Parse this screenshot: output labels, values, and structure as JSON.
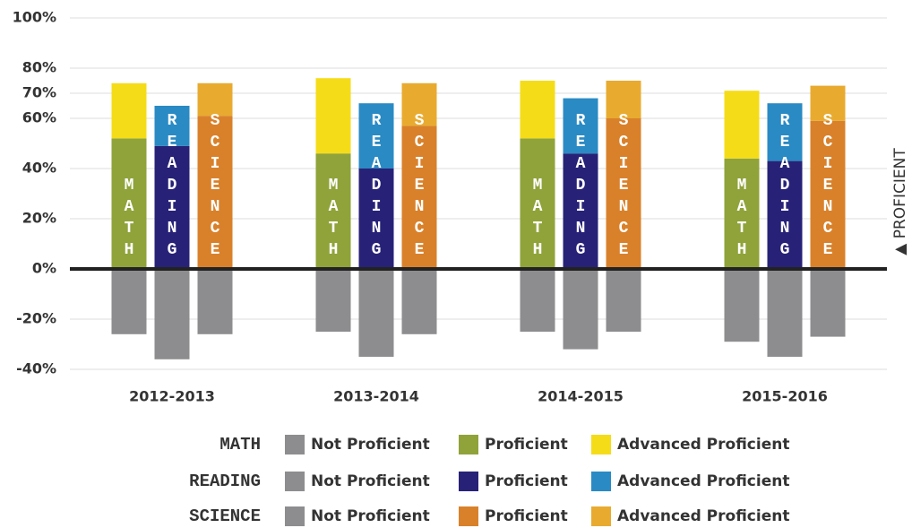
{
  "chart_data": {
    "type": "bar",
    "categories": [
      "2012-2013",
      "2013-2014",
      "2014-2015",
      "2015-2016"
    ],
    "ylim": [
      -40,
      100
    ],
    "yticks": [
      {
        "value": -40,
        "label": "-40%"
      },
      {
        "value": -20,
        "label": "-20%"
      },
      {
        "value": 0,
        "label": "0%"
      },
      {
        "value": 20,
        "label": "20%"
      },
      {
        "value": 40,
        "label": "40%"
      },
      {
        "value": 60,
        "label": "60%"
      },
      {
        "value": 70,
        "label": "70%"
      },
      {
        "value": 80,
        "label": "80%"
      },
      {
        "value": 100,
        "label": "100%"
      }
    ],
    "grid": true,
    "y_axis_label": "▲ PROFICIENT",
    "subjects": [
      {
        "name": "MATH",
        "series": [
          {
            "name": "Not Proficient",
            "color": "#8d8d8f",
            "values": [
              -26,
              -25,
              -25,
              -29
            ]
          },
          {
            "name": "Proficient",
            "color": "#8fa33a",
            "values": [
              52,
              46,
              52,
              44
            ]
          },
          {
            "name": "Advanced Proficient",
            "color": "#f5dc18",
            "values": [
              22,
              30,
              23,
              27
            ]
          }
        ]
      },
      {
        "name": "READING",
        "series": [
          {
            "name": "Not Proficient",
            "color": "#8d8d8f",
            "values": [
              -36,
              -35,
              -32,
              -35
            ]
          },
          {
            "name": "Proficient",
            "color": "#272277",
            "values": [
              49,
              40,
              46,
              43
            ]
          },
          {
            "name": "Advanced Proficient",
            "color": "#2a8ac4",
            "values": [
              16,
              26,
              22,
              23
            ]
          }
        ]
      },
      {
        "name": "SCIENCE",
        "series": [
          {
            "name": "Not Proficient",
            "color": "#8d8d8f",
            "values": [
              -26,
              -26,
              -25,
              -27
            ]
          },
          {
            "name": "Proficient",
            "color": "#d9812a",
            "values": [
              61,
              57,
              60,
              59
            ]
          },
          {
            "name": "Advanced Proficient",
            "color": "#e8ab30",
            "values": [
              13,
              17,
              15,
              14
            ]
          }
        ]
      }
    ]
  }
}
